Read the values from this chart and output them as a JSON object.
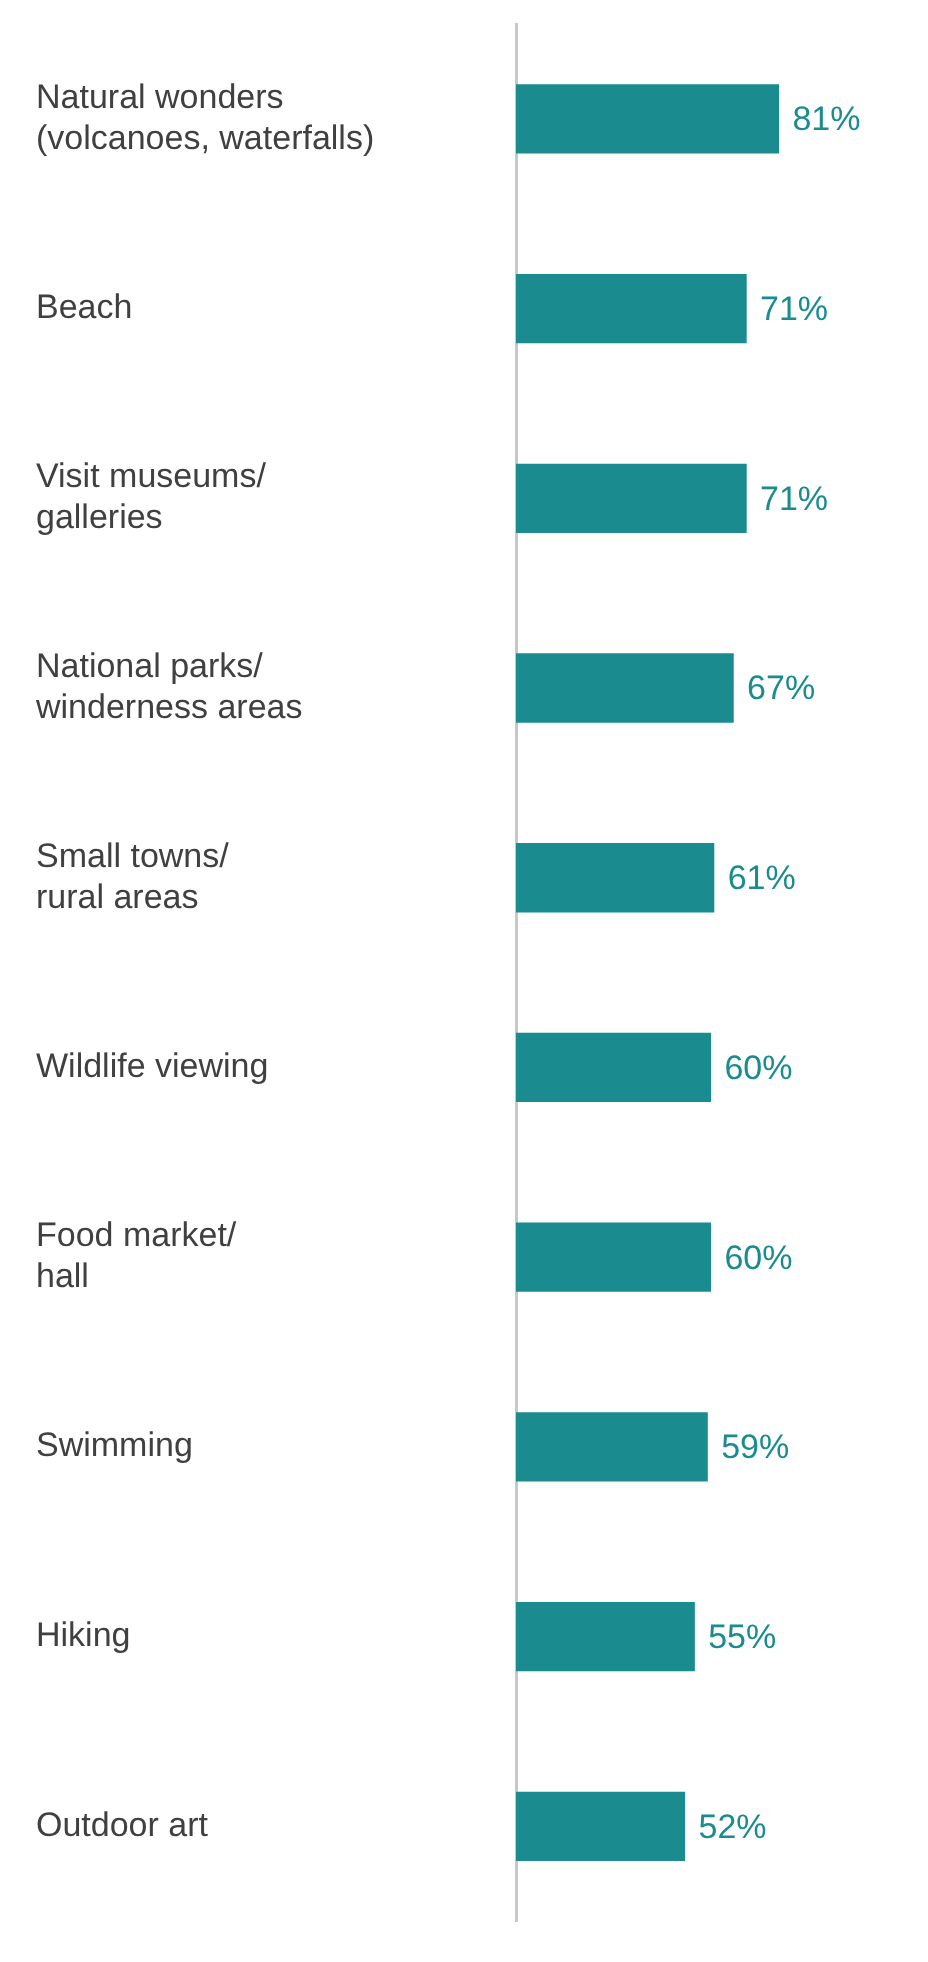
{
  "chart_data": {
    "type": "bar",
    "orientation": "horizontal",
    "categories": [
      "Natural wonders (volcanoes, waterfalls)",
      "Beach",
      "Visit museums/ galleries",
      "National parks/ winderness areas",
      "Small towns/ rural areas",
      "Wildlife viewing",
      "Food market/ hall",
      "Swimming",
      "Hiking",
      "Outdoor art"
    ],
    "values": [
      81,
      71,
      71,
      67,
      61,
      60,
      60,
      59,
      55,
      52
    ],
    "value_labels": [
      "81%",
      "71%",
      "71%",
      "67%",
      "61%",
      "60%",
      "60%",
      "59%",
      "55%",
      "52%"
    ],
    "color": "#1a8c8f",
    "tick_labels": "y",
    "grid": false
  }
}
